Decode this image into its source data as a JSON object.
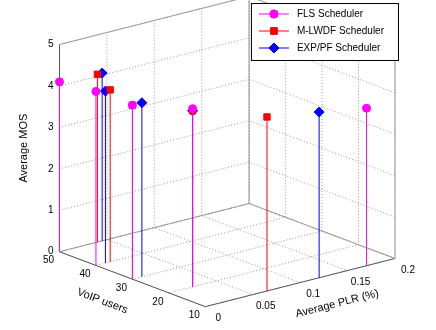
{
  "chart_data": {
    "type": "stem3",
    "x_label": "VoIP users",
    "y_label": "Average PLR (%)",
    "z_label": "Average MOS",
    "xlim": [
      10,
      50
    ],
    "xticks": [
      10,
      20,
      30,
      40,
      50
    ],
    "ylim": [
      0,
      0.2
    ],
    "yticks": [
      0,
      0.05,
      0.1,
      0.15,
      0.2
    ],
    "zlim": [
      0,
      5
    ],
    "zticks": [
      0,
      1,
      2,
      3,
      4,
      5
    ],
    "grid": true,
    "legend": "top-right",
    "series": [
      {
        "name": "FLS Scheduler",
        "color": "#ff00ff",
        "marker": "circle",
        "x": [
          50,
          40,
          30,
          20,
          10
        ],
        "y": [
          0,
          0,
          0,
          0.025,
          0.17
        ],
        "z": [
          4.1,
          4.2,
          4.2,
          4.3,
          3.8
        ]
      },
      {
        "name": "M-LWDF Scheduler",
        "color": "#ff0000",
        "marker": "square",
        "x": [
          50,
          40,
          30,
          20,
          10
        ],
        "y": [
          0.04,
          0.015,
          0,
          0.025,
          0.065
        ],
        "z": [
          4.05,
          4.15,
          4.2,
          4.25,
          4.2
        ]
      },
      {
        "name": "EXP/PF Scheduler",
        "color": "#0000ff",
        "marker": "diamond",
        "x": [
          50,
          40,
          30,
          20,
          10
        ],
        "y": [
          0.045,
          0.01,
          0.01,
          0.025,
          0.12
        ],
        "z": [
          4.05,
          4.15,
          4.2,
          4.25,
          4.0
        ]
      }
    ]
  }
}
